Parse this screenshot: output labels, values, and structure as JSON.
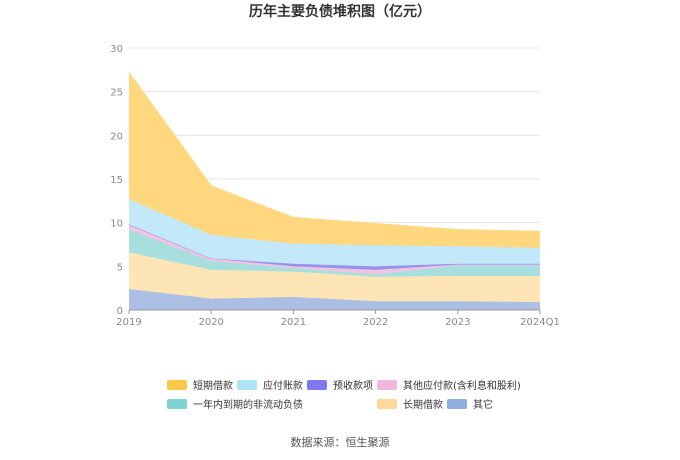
{
  "chart_data": {
    "type": "area",
    "stacked": true,
    "title": "历年主要负债堆积图（亿元）",
    "categories": [
      "2019",
      "2020",
      "2021",
      "2022",
      "2023",
      "2024Q1"
    ],
    "ylim": [
      0,
      30
    ],
    "yticks": [
      0,
      5,
      10,
      15,
      20,
      25,
      30
    ],
    "grid": true,
    "legend_position": "bottom",
    "series": [
      {
        "name": "其它",
        "color": "#aabfe3",
        "values": [
          2.4,
          1.3,
          1.5,
          1.0,
          1.0,
          0.9
        ]
      },
      {
        "name": "长期借款",
        "color": "#fde5b5",
        "values": [
          4.2,
          3.3,
          2.9,
          2.8,
          2.9,
          3.0
        ]
      },
      {
        "name": "一年内到期的非流动负债",
        "color": "#a7dfdf",
        "values": [
          2.6,
          1.0,
          0.4,
          0.3,
          1.2,
          1.2
        ]
      },
      {
        "name": "其他应付款(含利息和股利)",
        "color": "#f1c4e0",
        "values": [
          0.6,
          0.3,
          0.2,
          0.5,
          0.1,
          0.1
        ]
      },
      {
        "name": "预收款项",
        "color": "#9a93ee",
        "values": [
          0.0,
          0.0,
          0.3,
          0.4,
          0.1,
          0.1
        ]
      },
      {
        "name": "应付账款",
        "color": "#c2e8fa",
        "values": [
          2.9,
          2.7,
          2.3,
          2.4,
          2.0,
          1.8
        ]
      },
      {
        "name": "短期借款",
        "color": "#ffd77f",
        "values": [
          14.5,
          5.6,
          3.0,
          2.5,
          1.9,
          1.9
        ]
      }
    ],
    "legend": [
      {
        "name": "短期借款",
        "swatch": "#fbc84a"
      },
      {
        "name": "应付账款",
        "swatch": "#aee3f8"
      },
      {
        "name": "预收款项",
        "swatch": "#7f78ef"
      },
      {
        "name": "其他应付款(含利息和股利)",
        "swatch": "#efb8dc"
      },
      {
        "name": "一年内到期的非流动负债",
        "swatch": "#7fd4d3"
      },
      {
        "name": "长期借款",
        "swatch": "#fdd89a"
      },
      {
        "name": "其它",
        "swatch": "#8faee0"
      }
    ]
  },
  "source_text": "数据来源：恒生聚源"
}
